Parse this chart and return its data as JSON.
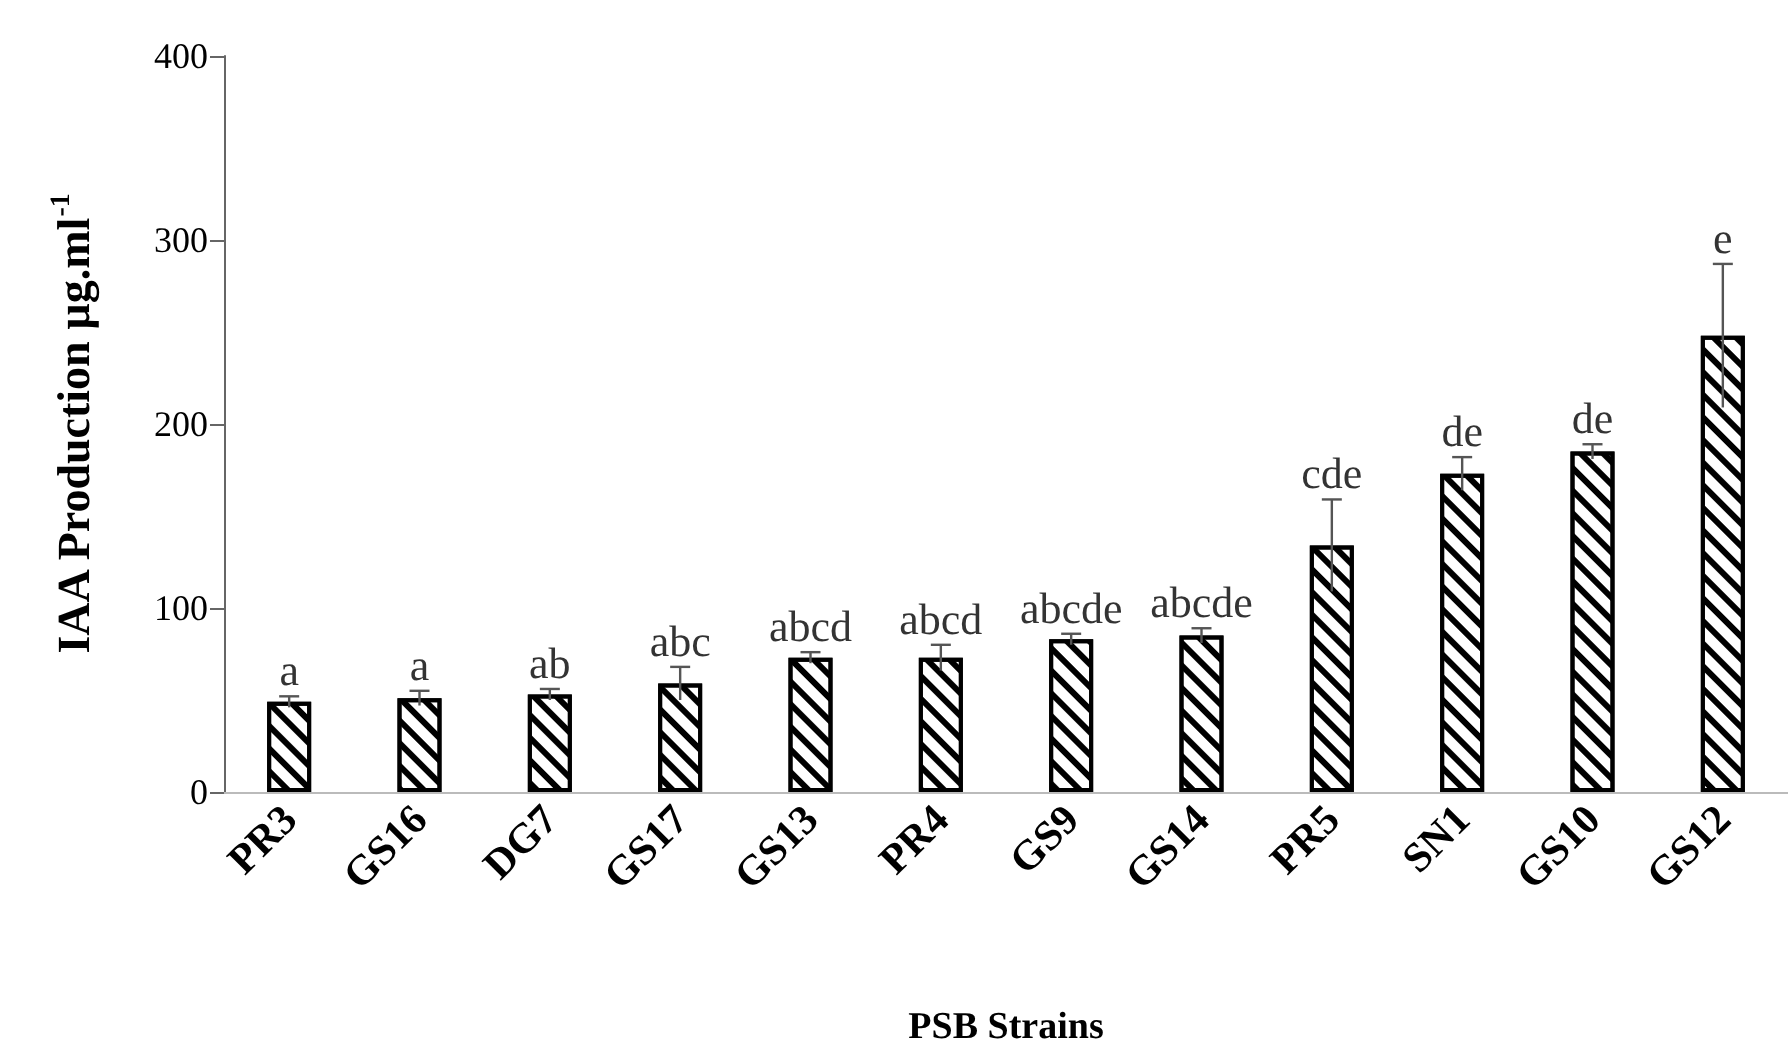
{
  "chart_data": {
    "type": "bar",
    "xlabel": "PSB Strains",
    "ylabel": "IAA Production µg.ml$^{-1}$",
    "categories": [
      "PR3",
      "GS16",
      "DG7",
      "GS17",
      "GS13",
      "PR4",
      "GS9",
      "GS14",
      "PR5",
      "SN1",
      "GS10",
      "GS12"
    ],
    "values": [
      49,
      51,
      53,
      59,
      73,
      73,
      83,
      85,
      134,
      173,
      185,
      248
    ],
    "errors": [
      3,
      4,
      3,
      9,
      3,
      7,
      3,
      4,
      25,
      9,
      4,
      39
    ],
    "color": "#000000",
    "ylim": [
      0,
      400
    ],
    "yticks": [
      0,
      100,
      200,
      300,
      400
    ],
    "grid": false,
    "annotations": [
      {
        "text": "a",
        "x": "PR3",
        "y": 52
      },
      {
        "text": "a",
        "x": "GS16",
        "y": 55
      },
      {
        "text": "ab",
        "x": "DG7",
        "y": 56
      },
      {
        "text": "abc",
        "x": "GS17",
        "y": 68
      },
      {
        "text": "abcd",
        "x": "GS13",
        "y": 76
      },
      {
        "text": "abcd",
        "x": "PR4",
        "y": 80
      },
      {
        "text": "abcde",
        "x": "GS9",
        "y": 86
      },
      {
        "text": "abcde",
        "x": "GS14",
        "y": 89
      },
      {
        "text": "cde",
        "x": "PR5",
        "y": 159
      },
      {
        "text": "de",
        "x": "SN1",
        "y": 182
      },
      {
        "text": "de",
        "x": "GS10",
        "y": 189
      },
      {
        "text": "e",
        "x": "GS12",
        "y": 287
      }
    ]
  }
}
